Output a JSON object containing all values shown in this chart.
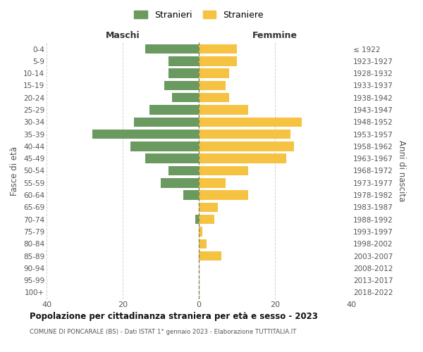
{
  "age_groups": [
    "0-4",
    "5-9",
    "10-14",
    "15-19",
    "20-24",
    "25-29",
    "30-34",
    "35-39",
    "40-44",
    "45-49",
    "50-54",
    "55-59",
    "60-64",
    "65-69",
    "70-74",
    "75-79",
    "80-84",
    "85-89",
    "90-94",
    "95-99",
    "100+"
  ],
  "birth_years": [
    "2018-2022",
    "2013-2017",
    "2008-2012",
    "2003-2007",
    "1998-2002",
    "1993-1997",
    "1988-1992",
    "1983-1987",
    "1978-1982",
    "1973-1977",
    "1968-1972",
    "1963-1967",
    "1958-1962",
    "1953-1957",
    "1948-1952",
    "1943-1947",
    "1938-1942",
    "1933-1937",
    "1928-1932",
    "1923-1927",
    "≤ 1922"
  ],
  "males": [
    14,
    8,
    8,
    9,
    7,
    13,
    17,
    28,
    18,
    14,
    8,
    10,
    4,
    0,
    1,
    0,
    0,
    0,
    0,
    0,
    0
  ],
  "females": [
    10,
    10,
    8,
    7,
    8,
    13,
    27,
    24,
    25,
    23,
    13,
    7,
    13,
    5,
    4,
    1,
    2,
    6,
    0,
    0,
    0
  ],
  "male_color": "#6a9a5f",
  "female_color": "#f5c242",
  "background_color": "#ffffff",
  "grid_color": "#cccccc",
  "title": "Popolazione per cittadinanza straniera per età e sesso - 2023",
  "subtitle": "COMUNE DI PONCARALE (BS) - Dati ISTAT 1° gennaio 2023 - Elaborazione TUTTITALIA.IT",
  "legend_stranieri": "Stranieri",
  "legend_straniere": "Straniere",
  "xlabel_left": "Maschi",
  "xlabel_right": "Femmine",
  "ylabel_left": "Fasce di età",
  "ylabel_right": "Anni di nascita",
  "xlim": 40,
  "bar_height": 0.78
}
